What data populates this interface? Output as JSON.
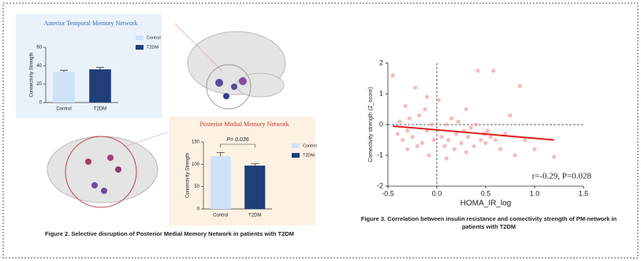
{
  "chart_data": [
    {
      "type": "bar",
      "title": "Anterior Temporal Memory Network",
      "y_label": "Connectivity Strength",
      "categories": [
        "Control",
        "T2DM"
      ],
      "values": [
        33,
        36
      ],
      "errors": [
        2,
        2
      ],
      "colors": [
        "#cfe2f7",
        "#1f3e7a"
      ],
      "ylim": [
        0,
        60
      ],
      "yticks": [
        0,
        20,
        40,
        60
      ],
      "legend": "top-right"
    },
    {
      "type": "bar",
      "title": "Posterior Medial Memory Network",
      "y_label": "Connectivity Strength",
      "categories": [
        "Control",
        "T2DM"
      ],
      "values": [
        118,
        97
      ],
      "errors": [
        8,
        4
      ],
      "colors": [
        "#cfe2f7",
        "#1f3e7a"
      ],
      "ylim": [
        0,
        150
      ],
      "yticks": [
        0,
        50,
        100,
        150
      ],
      "legend": "top-right",
      "annotation": "P= 0.036"
    },
    {
      "type": "scatter",
      "x_label": "HOMA_IR_log",
      "y_label": "Comectivity strength (Z_score)",
      "color": "#f4a6a6",
      "fit_color": "#e02020",
      "x": [
        -0.45,
        -0.4,
        -0.38,
        -0.35,
        -0.32,
        -0.3,
        -0.28,
        -0.25,
        -0.22,
        -0.2,
        -0.18,
        -0.15,
        -0.12,
        -0.1,
        -0.08,
        -0.05,
        -0.03,
        0.02,
        0.05,
        0.08,
        0.1,
        0.12,
        0.15,
        0.18,
        0.2,
        0.22,
        0.25,
        0.28,
        0.3,
        0.32,
        0.35,
        0.38,
        0.4,
        0.42,
        0.45,
        0.48,
        0.5,
        0.52,
        0.55,
        0.58,
        0.6,
        0.65,
        0.7,
        0.75,
        0.8,
        0.85,
        0.9,
        1.0,
        1.2,
        -0.3,
        -0.1,
        0.1,
        0.3,
        0.5
      ],
      "values": [
        1.6,
        -0.3,
        0.1,
        -0.5,
        0.6,
        -0.8,
        0.2,
        -0.4,
        1.2,
        -0.7,
        0.3,
        -0.6,
        0.5,
        -0.2,
        -1.0,
        0.0,
        -0.5,
        0.8,
        -0.4,
        -0.7,
        0.0,
        -0.5,
        0.2,
        -0.8,
        -0.3,
        0.1,
        -0.6,
        -0.2,
        0.5,
        -0.4,
        -0.1,
        -0.7,
        0.0,
        1.75,
        -0.5,
        -0.3,
        -0.6,
        -0.2,
        -0.4,
        1.75,
        -0.5,
        -0.8,
        -0.3,
        0.3,
        -1.0,
        1.25,
        -0.5,
        -0.8,
        -1.05,
        -0.2,
        0.9,
        -1.1,
        -0.9,
        -0.3
      ],
      "fit_x": [
        -0.45,
        1.2
      ],
      "fit_y": [
        -0.05,
        -0.5
      ],
      "xlim": [
        -0.5,
        1.5
      ],
      "xticks": [
        -0.5,
        {
          "value": 0,
          "label": "0.0"
        },
        0.5,
        {
          "value": 1,
          "label": "1.0"
        },
        1.5
      ],
      "ylim": [
        -2,
        2
      ],
      "yticks": [
        -2,
        -1,
        0,
        1,
        2
      ],
      "annotation": "r=-0.29, P=0.028"
    }
  ],
  "captions": [
    "Figure 2. Selective disruption of Posterior Medial Memory Network in patients with T2DM",
    "Figure 3. Correlation between insulin resistance and comectivity strength of PM-network in patients with T2DM"
  ]
}
